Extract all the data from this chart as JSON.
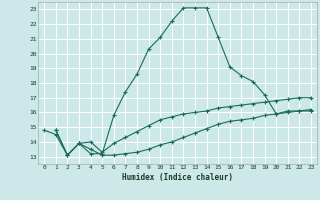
{
  "xlabel": "Humidex (Indice chaleur)",
  "background_color": "#cce8e8",
  "grid_color": "#ffffff",
  "line_color": "#1a6b5a",
  "xlim": [
    -0.5,
    23.5
  ],
  "ylim": [
    12.5,
    23.5
  ],
  "xticks": [
    0,
    1,
    2,
    3,
    4,
    5,
    6,
    7,
    8,
    9,
    10,
    11,
    12,
    13,
    14,
    15,
    16,
    17,
    18,
    19,
    20,
    21,
    22,
    23
  ],
  "yticks": [
    13,
    14,
    15,
    16,
    17,
    18,
    19,
    20,
    21,
    22,
    23
  ],
  "line1_x": [
    0,
    1,
    2,
    3,
    4,
    5,
    6,
    7,
    8,
    9,
    10,
    11,
    12,
    13,
    14,
    15,
    16,
    17,
    18,
    19,
    20,
    21,
    22,
    23
  ],
  "line1_y": [
    14.8,
    14.5,
    13.1,
    13.9,
    13.2,
    13.2,
    15.8,
    17.4,
    18.6,
    20.3,
    21.1,
    22.2,
    23.1,
    23.1,
    23.1,
    21.1,
    19.1,
    18.5,
    18.1,
    17.2,
    15.9,
    16.1,
    16.1,
    16.1
  ],
  "line2_x": [
    1,
    2,
    3,
    4,
    5,
    6,
    7,
    8,
    9,
    10,
    11,
    12,
    13,
    14,
    15,
    16,
    17,
    18,
    19,
    20,
    21,
    22,
    23
  ],
  "line2_y": [
    14.8,
    13.1,
    13.9,
    14.0,
    13.3,
    13.9,
    14.3,
    14.7,
    15.1,
    15.5,
    15.7,
    15.9,
    16.0,
    16.1,
    16.3,
    16.4,
    16.5,
    16.6,
    16.7,
    16.8,
    16.9,
    17.0,
    17.0
  ],
  "line3_x": [
    1,
    2,
    3,
    4,
    5,
    6,
    7,
    8,
    9,
    10,
    11,
    12,
    13,
    14,
    15,
    16,
    17,
    18,
    19,
    20,
    21,
    22,
    23
  ],
  "line3_y": [
    14.8,
    13.1,
    13.9,
    13.5,
    13.1,
    13.1,
    13.2,
    13.3,
    13.5,
    13.8,
    14.0,
    14.3,
    14.6,
    14.9,
    15.2,
    15.4,
    15.5,
    15.6,
    15.8,
    15.9,
    16.0,
    16.1,
    16.2
  ]
}
